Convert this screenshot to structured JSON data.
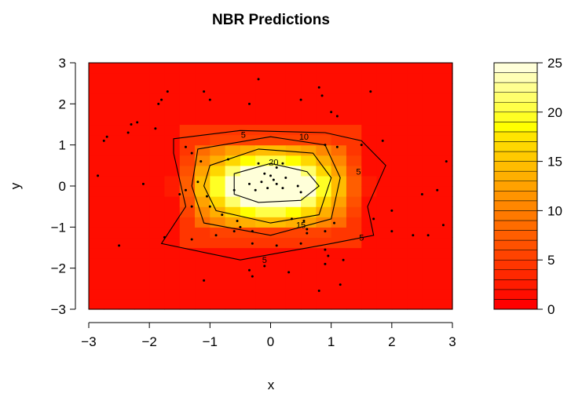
{
  "chart_data": {
    "type": "heatmap",
    "title": "NBR Predictions",
    "xlabel": "x",
    "ylabel": "y",
    "xlim": [
      -3,
      3
    ],
    "ylim": [
      -3,
      3
    ],
    "x_ticks": [
      "−3",
      "−2",
      "−1",
      "0",
      "1",
      "2",
      "3"
    ],
    "y_ticks": [
      "−3",
      "−2",
      "−1",
      "0",
      "1",
      "2",
      "3"
    ],
    "colorbar": {
      "range": [
        0,
        25
      ],
      "ticks": [
        "0",
        "5",
        "10",
        "15",
        "20",
        "25"
      ],
      "levels": 25,
      "palette": "heat"
    },
    "contour_levels": [
      5,
      10,
      15,
      20
    ],
    "contour_labels": [
      {
        "text": "5",
        "x": -0.45,
        "y": 1.25
      },
      {
        "text": "10",
        "x": 0.55,
        "y": 1.2
      },
      {
        "text": "20",
        "x": 0.05,
        "y": 0.58
      },
      {
        "text": "5",
        "x": 1.45,
        "y": 0.35
      },
      {
        "text": "15",
        "x": 0.5,
        "y": -0.95
      },
      {
        "text": "5",
        "x": 1.5,
        "y": -1.25
      },
      {
        "text": "5",
        "x": -0.1,
        "y": -1.8
      }
    ],
    "points": [
      [
        -0.2,
        2.6
      ],
      [
        -1.1,
        2.3
      ],
      [
        -1.0,
        2.1
      ],
      [
        -1.7,
        2.3
      ],
      [
        -1.8,
        2.1
      ],
      [
        -1.85,
        2.0
      ],
      [
        0.8,
        2.4
      ],
      [
        0.85,
        2.2
      ],
      [
        1.0,
        1.8
      ],
      [
        1.1,
        1.7
      ],
      [
        1.65,
        2.3
      ],
      [
        0.5,
        2.1
      ],
      [
        -0.35,
        2.0
      ],
      [
        -2.2,
        1.55
      ],
      [
        -2.3,
        1.5
      ],
      [
        -1.9,
        1.4
      ],
      [
        -2.35,
        1.3
      ],
      [
        -2.7,
        1.2
      ],
      [
        -2.75,
        1.1
      ],
      [
        0.9,
        1.0
      ],
      [
        1.1,
        0.95
      ],
      [
        1.85,
        1.1
      ],
      [
        1.5,
        1.0
      ],
      [
        -1.4,
        0.95
      ],
      [
        -1.3,
        0.8
      ],
      [
        -1.15,
        0.6
      ],
      [
        -0.7,
        0.65
      ],
      [
        -0.2,
        0.55
      ],
      [
        0.1,
        0.45
      ],
      [
        0.2,
        0.55
      ],
      [
        -0.1,
        0.3
      ],
      [
        0.0,
        0.25
      ],
      [
        -0.15,
        0.1
      ],
      [
        0.05,
        0.15
      ],
      [
        0.25,
        0.2
      ],
      [
        -0.35,
        0.05
      ],
      [
        0.1,
        0.05
      ],
      [
        0.2,
        -0.05
      ],
      [
        -0.05,
        -0.05
      ],
      [
        0.45,
        0.0
      ],
      [
        -0.25,
        -0.1
      ],
      [
        -0.6,
        -0.1
      ],
      [
        0.5,
        -0.15
      ],
      [
        -1.2,
        0.1
      ],
      [
        -1.4,
        -0.1
      ],
      [
        -1.5,
        -0.2
      ],
      [
        -2.1,
        0.05
      ],
      [
        -2.85,
        0.25
      ],
      [
        -1.05,
        -0.25
      ],
      [
        -1.0,
        -0.5
      ],
      [
        -1.3,
        -0.5
      ],
      [
        -0.8,
        -0.7
      ],
      [
        -0.55,
        -0.85
      ],
      [
        -0.5,
        -1.0
      ],
      [
        -0.3,
        -1.1
      ],
      [
        -0.6,
        -1.1
      ],
      [
        -0.9,
        -1.2
      ],
      [
        0.35,
        -0.8
      ],
      [
        0.55,
        -0.85
      ],
      [
        0.6,
        -1.05
      ],
      [
        0.6,
        -1.15
      ],
      [
        0.9,
        -1.1
      ],
      [
        1.05,
        -0.9
      ],
      [
        1.7,
        -0.8
      ],
      [
        2.0,
        -0.6
      ],
      [
        2.5,
        -0.2
      ],
      [
        2.75,
        -0.1
      ],
      [
        2.9,
        0.6
      ],
      [
        2.0,
        -1.1
      ],
      [
        2.6,
        -1.2
      ],
      [
        2.35,
        -1.2
      ],
      [
        2.85,
        -0.95
      ],
      [
        -1.75,
        -1.25
      ],
      [
        -2.5,
        -1.45
      ],
      [
        -1.3,
        -1.3
      ],
      [
        -0.3,
        -1.4
      ],
      [
        0.1,
        -1.45
      ],
      [
        0.5,
        -1.4
      ],
      [
        0.9,
        -1.55
      ],
      [
        0.95,
        -1.7
      ],
      [
        0.9,
        -1.9
      ],
      [
        1.2,
        -1.8
      ],
      [
        -1.1,
        -2.3
      ],
      [
        -0.35,
        -2.05
      ],
      [
        -0.3,
        -2.2
      ],
      [
        -0.1,
        -1.95
      ],
      [
        0.3,
        -2.1
      ],
      [
        0.8,
        -2.55
      ],
      [
        1.15,
        -2.4
      ]
    ]
  }
}
